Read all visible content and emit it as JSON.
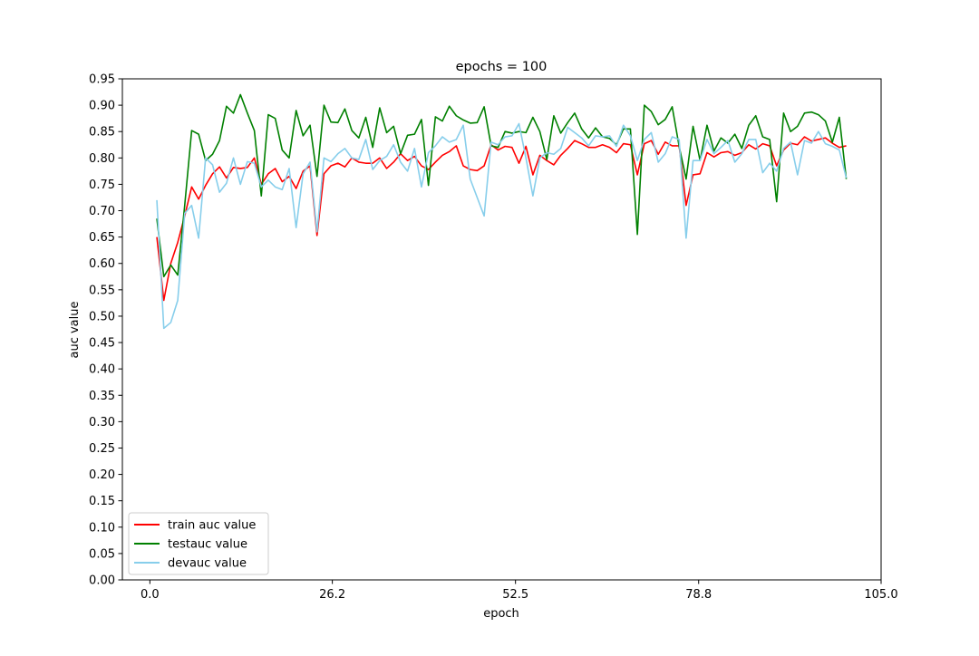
{
  "chart_data": {
    "type": "line",
    "title": "epochs = 100",
    "xlabel": "epoch",
    "ylabel": "auc value",
    "xlim": [
      -3.95,
      105.0
    ],
    "ylim": [
      0.0,
      0.95
    ],
    "xticks": [
      "0.0",
      "26.2",
      "52.5",
      "78.8",
      "105.0"
    ],
    "xtick_values": [
      0.0,
      26.2,
      52.5,
      78.8,
      105.0
    ],
    "yticks": [
      "0.00",
      "0.05",
      "0.10",
      "0.15",
      "0.20",
      "0.25",
      "0.30",
      "0.35",
      "0.40",
      "0.45",
      "0.50",
      "0.55",
      "0.60",
      "0.65",
      "0.70",
      "0.75",
      "0.80",
      "0.85",
      "0.90",
      "0.95"
    ],
    "ytick_values": [
      0.0,
      0.05,
      0.1,
      0.15,
      0.2,
      0.25,
      0.3,
      0.35,
      0.4,
      0.45,
      0.5,
      0.55,
      0.6,
      0.65,
      0.7,
      0.75,
      0.8,
      0.85,
      0.9,
      0.95
    ],
    "grid": false,
    "legend_position": "lower-left",
    "series": [
      {
        "name": "train auc value",
        "color": "#ff0000",
        "x": [
          1,
          2,
          3,
          4,
          5,
          6,
          7,
          8,
          9,
          10,
          11,
          12,
          13,
          14,
          15,
          16,
          17,
          18,
          19,
          20,
          21,
          22,
          23,
          24,
          25,
          26,
          27,
          28,
          29,
          30,
          31,
          32,
          33,
          34,
          35,
          36,
          37,
          38,
          39,
          40,
          41,
          42,
          43,
          44,
          45,
          46,
          47,
          48,
          49,
          50,
          51,
          52,
          53,
          54,
          55,
          56,
          57,
          58,
          59,
          60,
          61,
          62,
          63,
          64,
          65,
          66,
          67,
          68,
          69,
          70,
          71,
          72,
          73,
          74,
          75,
          76,
          77,
          78,
          79,
          80,
          81,
          82,
          83,
          84,
          85,
          86,
          87,
          88,
          89,
          90,
          91,
          92,
          93,
          94,
          95,
          96,
          97,
          98,
          99,
          100
        ],
        "values": [
          0.65,
          0.53,
          0.6,
          0.64,
          0.69,
          0.745,
          0.722,
          0.748,
          0.77,
          0.783,
          0.762,
          0.782,
          0.78,
          0.782,
          0.8,
          0.75,
          0.77,
          0.78,
          0.755,
          0.765,
          0.742,
          0.775,
          0.785,
          0.653,
          0.77,
          0.785,
          0.79,
          0.783,
          0.8,
          0.792,
          0.79,
          0.79,
          0.8,
          0.78,
          0.792,
          0.808,
          0.795,
          0.803,
          0.785,
          0.778,
          0.792,
          0.805,
          0.812,
          0.823,
          0.785,
          0.778,
          0.776,
          0.785,
          0.825,
          0.815,
          0.822,
          0.82,
          0.79,
          0.822,
          0.768,
          0.805,
          0.795,
          0.787,
          0.805,
          0.818,
          0.833,
          0.827,
          0.82,
          0.82,
          0.825,
          0.82,
          0.81,
          0.827,
          0.825,
          0.768,
          0.827,
          0.833,
          0.807,
          0.83,
          0.823,
          0.823,
          0.71,
          0.768,
          0.77,
          0.81,
          0.802,
          0.81,
          0.812,
          0.805,
          0.81,
          0.825,
          0.817,
          0.827,
          0.823,
          0.785,
          0.815,
          0.828,
          0.825,
          0.84,
          0.832,
          0.835,
          0.838,
          0.828,
          0.82,
          0.823
        ]
      },
      {
        "name": "testauc value",
        "color": "#008000",
        "x": [
          1,
          2,
          3,
          4,
          5,
          6,
          7,
          8,
          9,
          10,
          11,
          12,
          13,
          14,
          15,
          16,
          17,
          18,
          19,
          20,
          21,
          22,
          23,
          24,
          25,
          26,
          27,
          28,
          29,
          30,
          31,
          32,
          33,
          34,
          35,
          36,
          37,
          38,
          39,
          40,
          41,
          42,
          43,
          44,
          45,
          46,
          47,
          48,
          49,
          50,
          51,
          52,
          53,
          54,
          55,
          56,
          57,
          58,
          59,
          60,
          61,
          62,
          63,
          64,
          65,
          66,
          67,
          68,
          69,
          70,
          71,
          72,
          73,
          74,
          75,
          76,
          77,
          78,
          79,
          80,
          81,
          82,
          83,
          84,
          85,
          86,
          87,
          88,
          89,
          90,
          91,
          92,
          93,
          94,
          95,
          96,
          97,
          98,
          99,
          100
        ],
        "values": [
          0.685,
          0.575,
          0.597,
          0.578,
          0.71,
          0.852,
          0.845,
          0.795,
          0.807,
          0.833,
          0.898,
          0.885,
          0.92,
          0.885,
          0.852,
          0.728,
          0.882,
          0.875,
          0.815,
          0.8,
          0.89,
          0.842,
          0.862,
          0.765,
          0.9,
          0.868,
          0.867,
          0.893,
          0.852,
          0.838,
          0.877,
          0.82,
          0.895,
          0.848,
          0.86,
          0.808,
          0.843,
          0.845,
          0.873,
          0.748,
          0.878,
          0.87,
          0.898,
          0.88,
          0.872,
          0.866,
          0.867,
          0.897,
          0.823,
          0.82,
          0.85,
          0.847,
          0.85,
          0.848,
          0.877,
          0.85,
          0.797,
          0.88,
          0.847,
          0.867,
          0.885,
          0.855,
          0.838,
          0.857,
          0.84,
          0.837,
          0.825,
          0.855,
          0.855,
          0.655,
          0.9,
          0.888,
          0.863,
          0.873,
          0.897,
          0.822,
          0.76,
          0.86,
          0.795,
          0.862,
          0.813,
          0.838,
          0.828,
          0.845,
          0.818,
          0.862,
          0.88,
          0.84,
          0.835,
          0.717,
          0.885,
          0.85,
          0.86,
          0.885,
          0.887,
          0.882,
          0.87,
          0.83,
          0.877,
          0.76
        ]
      },
      {
        "name": "devauc value",
        "color": "#87ceeb",
        "x": [
          1,
          2,
          3,
          4,
          5,
          6,
          7,
          8,
          9,
          10,
          11,
          12,
          13,
          14,
          15,
          16,
          17,
          18,
          19,
          20,
          21,
          22,
          23,
          24,
          25,
          26,
          27,
          28,
          29,
          30,
          31,
          32,
          33,
          34,
          35,
          36,
          37,
          38,
          39,
          40,
          41,
          42,
          43,
          44,
          45,
          46,
          47,
          48,
          49,
          50,
          51,
          52,
          53,
          54,
          55,
          56,
          57,
          58,
          59,
          60,
          61,
          62,
          63,
          64,
          65,
          66,
          67,
          68,
          69,
          70,
          71,
          72,
          73,
          74,
          75,
          76,
          77,
          78,
          79,
          80,
          81,
          82,
          83,
          84,
          85,
          86,
          87,
          88,
          89,
          90,
          91,
          92,
          93,
          94,
          95,
          96,
          97,
          98,
          99,
          100
        ],
        "values": [
          0.72,
          0.477,
          0.488,
          0.53,
          0.695,
          0.71,
          0.648,
          0.8,
          0.787,
          0.735,
          0.752,
          0.8,
          0.75,
          0.793,
          0.79,
          0.745,
          0.758,
          0.745,
          0.74,
          0.78,
          0.668,
          0.77,
          0.792,
          0.66,
          0.8,
          0.793,
          0.808,
          0.818,
          0.8,
          0.797,
          0.835,
          0.778,
          0.795,
          0.803,
          0.825,
          0.792,
          0.775,
          0.818,
          0.745,
          0.81,
          0.823,
          0.84,
          0.83,
          0.835,
          0.862,
          0.76,
          0.725,
          0.69,
          0.83,
          0.825,
          0.84,
          0.842,
          0.865,
          0.8,
          0.728,
          0.8,
          0.81,
          0.807,
          0.818,
          0.858,
          0.848,
          0.838,
          0.823,
          0.842,
          0.84,
          0.842,
          0.822,
          0.862,
          0.842,
          0.795,
          0.835,
          0.848,
          0.792,
          0.808,
          0.84,
          0.835,
          0.648,
          0.795,
          0.795,
          0.835,
          0.808,
          0.82,
          0.833,
          0.792,
          0.808,
          0.835,
          0.835,
          0.772,
          0.79,
          0.775,
          0.818,
          0.83,
          0.768,
          0.833,
          0.828,
          0.85,
          0.827,
          0.822,
          0.815,
          0.762
        ]
      }
    ]
  }
}
